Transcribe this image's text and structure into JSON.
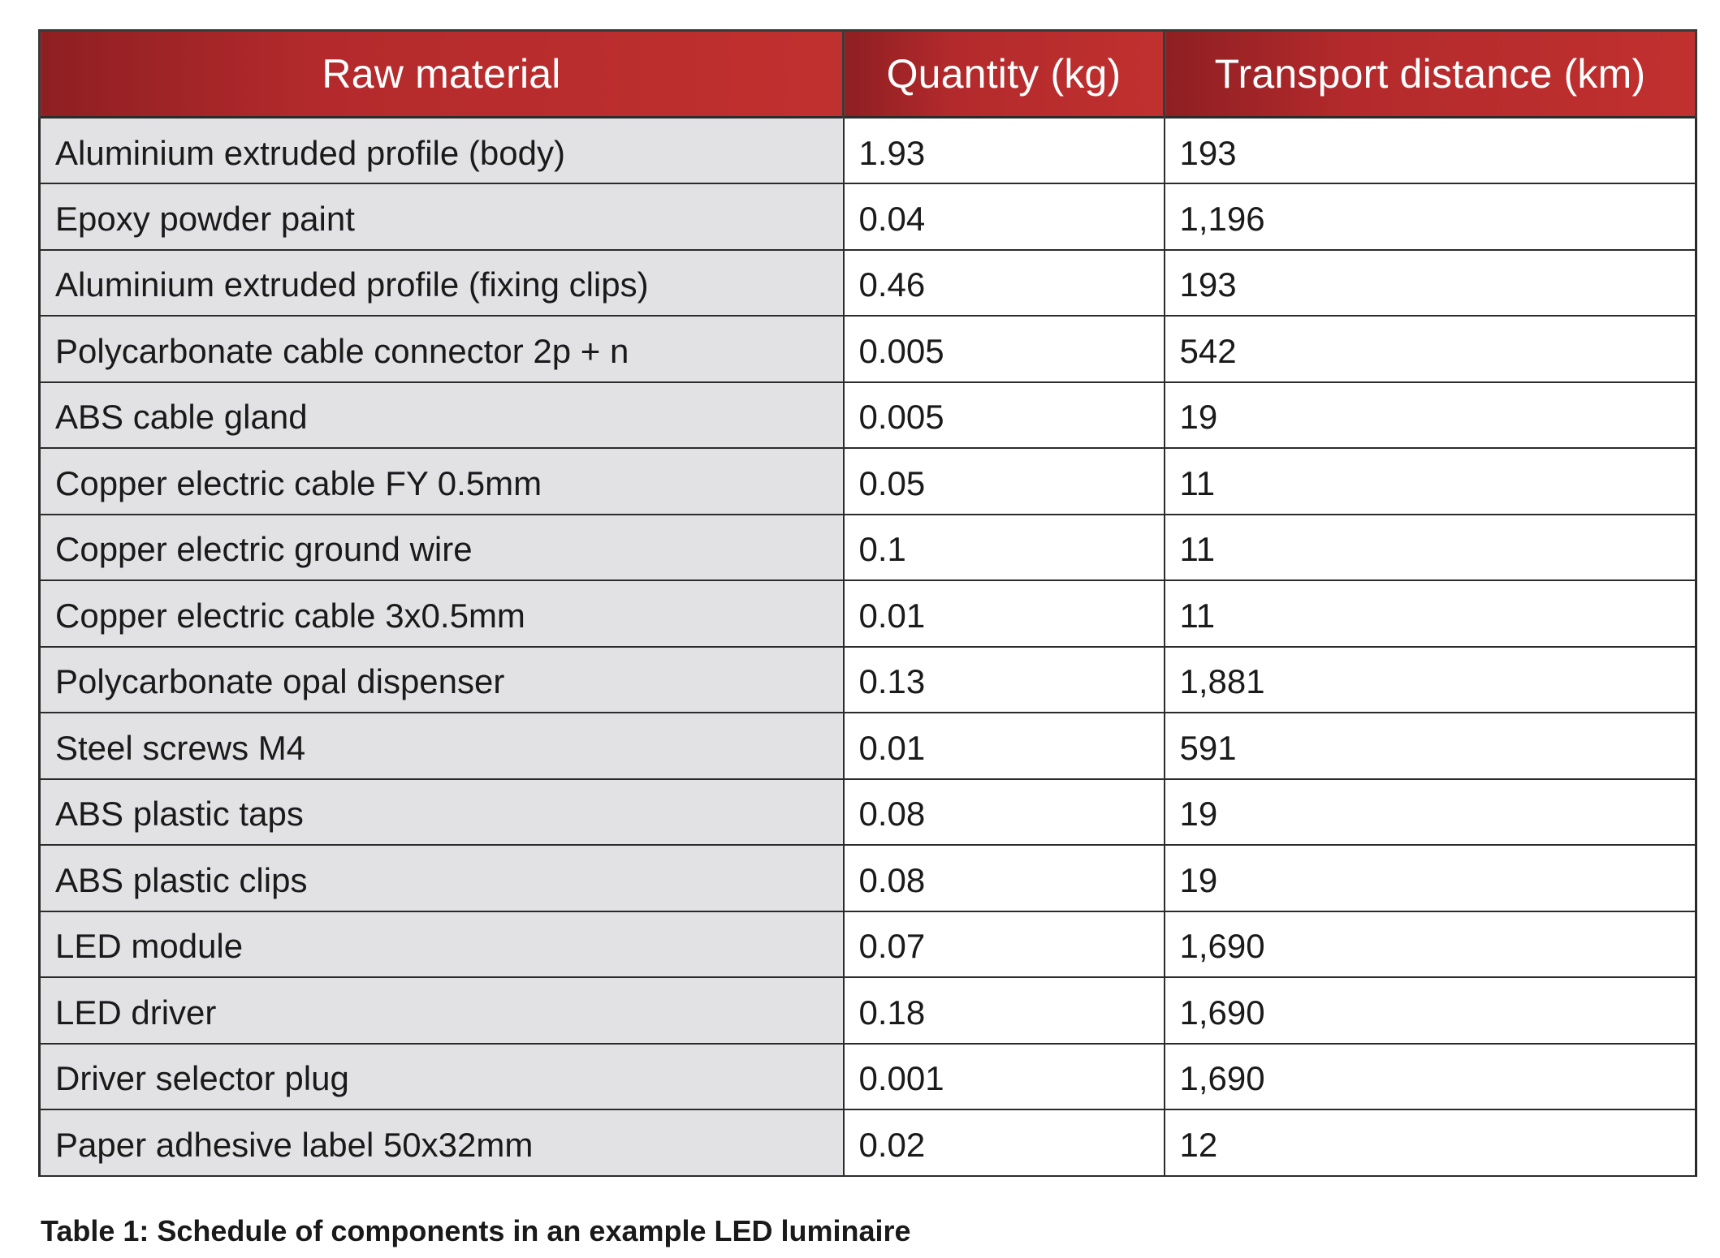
{
  "table": {
    "headers": [
      "Raw material",
      "Quantity (kg)",
      "Transport distance (km)"
    ],
    "rows": [
      [
        "Aluminium extruded profile (body)",
        "1.93",
        "193"
      ],
      [
        "Epoxy powder paint",
        "0.04",
        "1,196"
      ],
      [
        "Aluminium extruded profile (fixing clips)",
        "0.46",
        "193"
      ],
      [
        "Polycarbonate cable connector 2p + n",
        "0.005",
        "542"
      ],
      [
        "ABS cable gland",
        "0.005",
        "19"
      ],
      [
        "Copper electric cable FY 0.5mm",
        "0.05",
        "11"
      ],
      [
        "Copper electric ground wire",
        "0.1",
        "11"
      ],
      [
        "Copper electric cable 3x0.5mm",
        "0.01",
        "11"
      ],
      [
        "Polycarbonate opal dispenser",
        "0.13",
        "1,881"
      ],
      [
        "Steel screws M4",
        "0.01",
        "591"
      ],
      [
        "ABS plastic taps",
        "0.08",
        "19"
      ],
      [
        "ABS plastic clips",
        "0.08",
        "19"
      ],
      [
        "LED module",
        "0.07",
        "1,690"
      ],
      [
        "LED driver",
        "0.18",
        "1,690"
      ],
      [
        "Driver selector plug",
        "0.001",
        "1,690"
      ],
      [
        "Paper adhesive label 50x32mm",
        "0.02",
        "12"
      ]
    ]
  },
  "caption": "Table 1: Schedule of components in an example LED luminaire",
  "colors": {
    "header_bg": "#b42a2c",
    "header_text": "#ffffff",
    "material_col_bg": "#e2e2e4",
    "border": "#2b2b2b"
  }
}
